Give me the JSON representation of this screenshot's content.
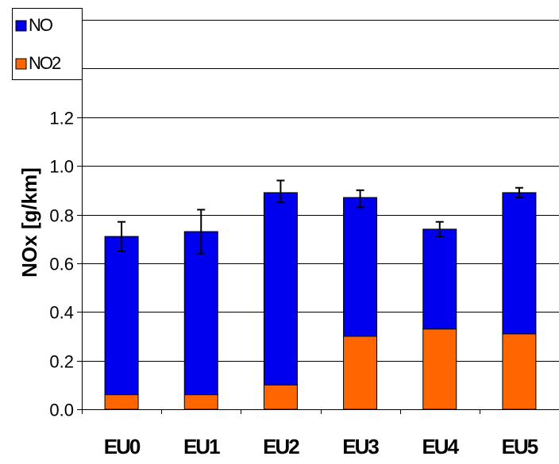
{
  "chart_data": {
    "type": "bar",
    "stacked": true,
    "categories": [
      "EU0",
      "EU1",
      "EU2",
      "EU3",
      "EU4",
      "EU5"
    ],
    "series": [
      {
        "name": "NO2",
        "color": "#FF6600",
        "values": [
          0.06,
          0.06,
          0.1,
          0.3,
          0.33,
          0.31
        ]
      },
      {
        "name": "NO",
        "color": "#0000EE",
        "values": [
          0.65,
          0.67,
          0.79,
          0.57,
          0.41,
          0.58
        ]
      }
    ],
    "totals": [
      0.71,
      0.73,
      0.89,
      0.87,
      0.74,
      0.89
    ],
    "error_bars": [
      {
        "low": 0.65,
        "high": 0.77
      },
      {
        "low": 0.64,
        "high": 0.82
      },
      {
        "low": 0.85,
        "high": 0.94
      },
      {
        "low": 0.83,
        "high": 0.9
      },
      {
        "low": 0.71,
        "high": 0.77
      },
      {
        "low": 0.87,
        "high": 0.91
      }
    ],
    "ylabel": "NOx [g/km]",
    "xlabel": "",
    "ylim": [
      0.0,
      1.6
    ],
    "yticks": [
      "0.0",
      "0.2",
      "0.4",
      "0.6",
      "0.8",
      "1.0",
      "1.2"
    ],
    "grid": true,
    "legend_position": "top-left",
    "legend": [
      "NO",
      "NO2"
    ]
  }
}
